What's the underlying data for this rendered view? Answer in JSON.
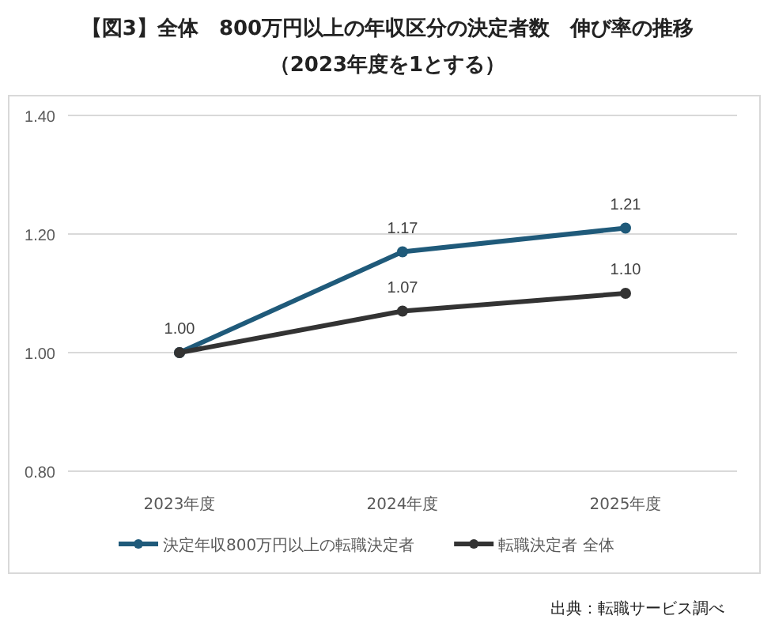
{
  "chart_data": {
    "type": "line",
    "title": "【図3】全体　800万円以上の年収区分の決定者数　伸び率の推移",
    "subtitle": "（2023年度を1とする）",
    "categories": [
      "2023年度",
      "2024年度",
      "2025年度"
    ],
    "series": [
      {
        "name": "決定年収800万円以上の転職決定者",
        "color": "#1f5a7a",
        "values": [
          1.0,
          1.17,
          1.21
        ],
        "value_labels": [
          "1.00",
          "1.17",
          "1.21"
        ]
      },
      {
        "name": "転職決定者 全体",
        "color": "#333333",
        "values": [
          1.0,
          1.07,
          1.1
        ],
        "value_labels": [
          null,
          "1.07",
          "1.10"
        ]
      }
    ],
    "ylim": [
      0.8,
      1.4
    ],
    "yticks": [
      {
        "value": 0.8,
        "label": "0.80"
      },
      {
        "value": 1.0,
        "label": "1.00"
      },
      {
        "value": 1.2,
        "label": "1.20"
      },
      {
        "value": 1.4,
        "label": "1.40"
      }
    ],
    "grid": "y",
    "legend": "bottom",
    "marker": "circle",
    "line_style": "solid",
    "annotations": [
      "出典：転職サービス調べ"
    ]
  }
}
